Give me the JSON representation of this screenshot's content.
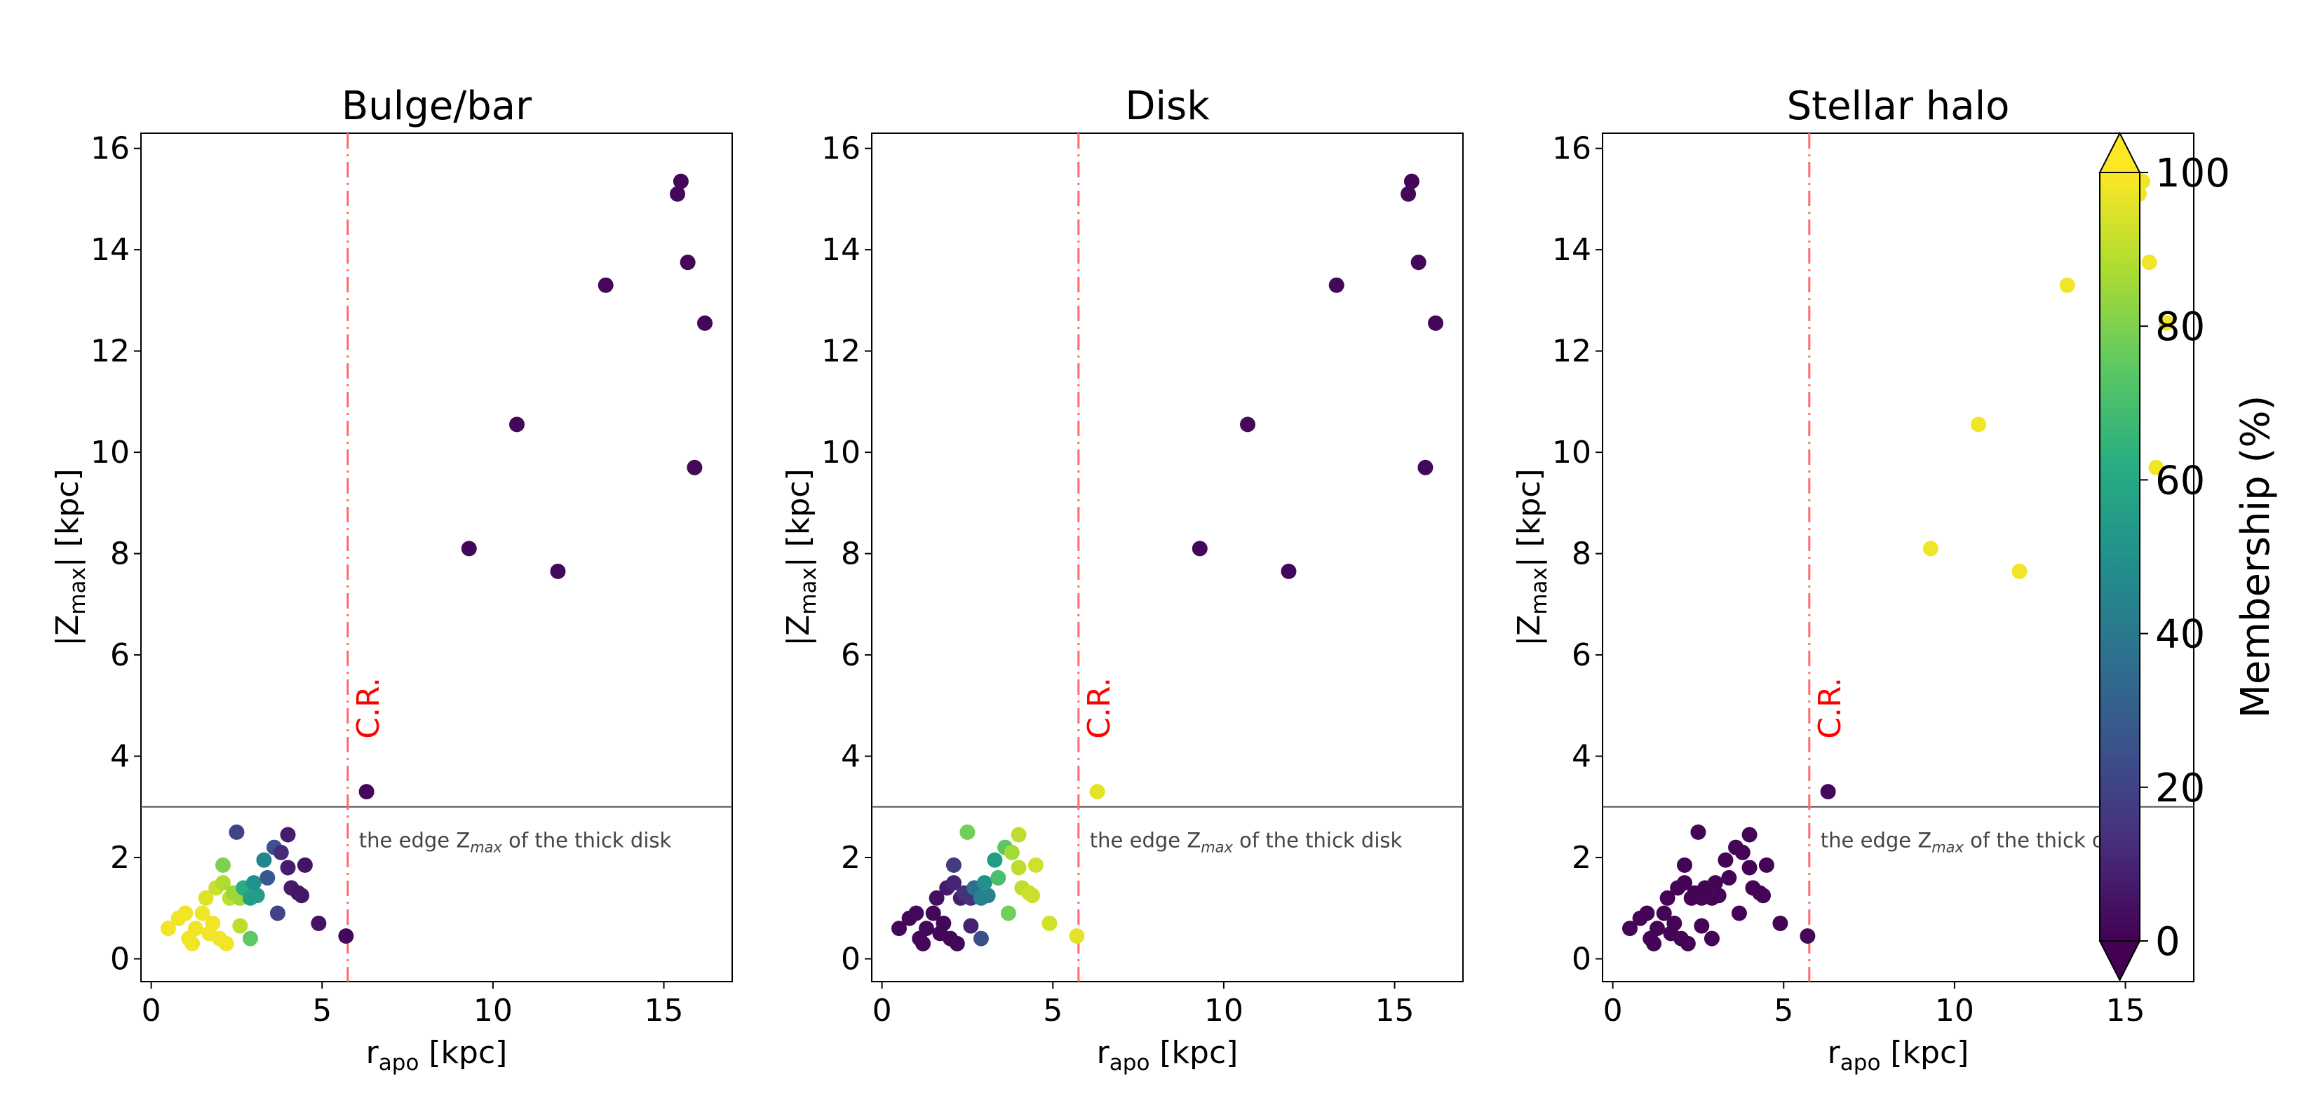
{
  "colors": {
    "cr_line": "#ff6a6a",
    "cr_text": "#ff0000",
    "edge_line": "#555555"
  },
  "chart_data": [
    {
      "type": "scatter",
      "title": "Bulge/bar",
      "xlabel_main": "r",
      "xlabel_sub": "apo",
      "xlabel_unit": " [kpc]",
      "ylabel_main": "|Z",
      "ylabel_sub": "max",
      "ylabel_unit": "| [kpc]",
      "xlim": [
        -0.3,
        17
      ],
      "ylim": [
        -0.45,
        16.3
      ],
      "xticks": [
        0,
        5,
        10,
        15
      ],
      "yticks": [
        0,
        2,
        4,
        6,
        8,
        10,
        12,
        14,
        16
      ],
      "cr_x": 5.75,
      "cr_label": "C.R.",
      "edge_y": 3.0,
      "edge_label_pre": "the edge Z",
      "edge_label_sub": "max",
      "edge_label_post": " of the thick disk",
      "points": [
        {
          "x": 15.4,
          "y": 15.1,
          "m": 2
        },
        {
          "x": 15.5,
          "y": 15.35,
          "m": 2
        },
        {
          "x": 15.7,
          "y": 13.75,
          "m": 2
        },
        {
          "x": 16.2,
          "y": 12.55,
          "m": 2
        },
        {
          "x": 13.3,
          "y": 13.3,
          "m": 2
        },
        {
          "x": 10.7,
          "y": 10.55,
          "m": 2
        },
        {
          "x": 15.9,
          "y": 9.7,
          "m": 2
        },
        {
          "x": 9.3,
          "y": 8.1,
          "m": 2
        },
        {
          "x": 11.9,
          "y": 7.65,
          "m": 2
        },
        {
          "x": 6.3,
          "y": 3.3,
          "m": 2
        },
        {
          "x": 5.7,
          "y": 0.45,
          "m": 2
        },
        {
          "x": 0.5,
          "y": 0.6,
          "m": 98
        },
        {
          "x": 0.8,
          "y": 0.8,
          "m": 98
        },
        {
          "x": 1.0,
          "y": 0.9,
          "m": 98
        },
        {
          "x": 1.1,
          "y": 0.4,
          "m": 98
        },
        {
          "x": 1.2,
          "y": 0.3,
          "m": 98
        },
        {
          "x": 1.3,
          "y": 0.6,
          "m": 98
        },
        {
          "x": 1.5,
          "y": 0.9,
          "m": 98
        },
        {
          "x": 1.6,
          "y": 1.2,
          "m": 95
        },
        {
          "x": 1.7,
          "y": 0.5,
          "m": 98
        },
        {
          "x": 1.8,
          "y": 0.7,
          "m": 98
        },
        {
          "x": 1.9,
          "y": 1.4,
          "m": 92
        },
        {
          "x": 2.0,
          "y": 0.4,
          "m": 98
        },
        {
          "x": 2.1,
          "y": 1.5,
          "m": 88
        },
        {
          "x": 2.2,
          "y": 0.3,
          "m": 98
        },
        {
          "x": 2.1,
          "y": 1.85,
          "m": 80
        },
        {
          "x": 2.3,
          "y": 1.2,
          "m": 90
        },
        {
          "x": 2.4,
          "y": 1.3,
          "m": 85
        },
        {
          "x": 2.6,
          "y": 1.2,
          "m": 85
        },
        {
          "x": 2.6,
          "y": 0.65,
          "m": 90
        },
        {
          "x": 2.9,
          "y": 0.4,
          "m": 75
        },
        {
          "x": 2.7,
          "y": 1.4,
          "m": 62
        },
        {
          "x": 2.9,
          "y": 1.2,
          "m": 55
        },
        {
          "x": 3.1,
          "y": 1.25,
          "m": 55
        },
        {
          "x": 3.0,
          "y": 1.5,
          "m": 50
        },
        {
          "x": 3.3,
          "y": 1.95,
          "m": 45
        },
        {
          "x": 3.4,
          "y": 1.6,
          "m": 28
        },
        {
          "x": 3.6,
          "y": 2.2,
          "m": 25
        },
        {
          "x": 2.5,
          "y": 2.5,
          "m": 20
        },
        {
          "x": 3.7,
          "y": 0.9,
          "m": 20
        },
        {
          "x": 3.8,
          "y": 2.1,
          "m": 12
        },
        {
          "x": 4.0,
          "y": 1.8,
          "m": 8
        },
        {
          "x": 4.0,
          "y": 2.45,
          "m": 8
        },
        {
          "x": 4.1,
          "y": 1.4,
          "m": 8
        },
        {
          "x": 4.3,
          "y": 1.3,
          "m": 6
        },
        {
          "x": 4.4,
          "y": 1.25,
          "m": 6
        },
        {
          "x": 4.5,
          "y": 1.85,
          "m": 5
        },
        {
          "x": 4.9,
          "y": 0.7,
          "m": 5
        }
      ]
    },
    {
      "type": "scatter",
      "title": "Disk",
      "xlabel_main": "r",
      "xlabel_sub": "apo",
      "xlabel_unit": " [kpc]",
      "ylabel_main": "|Z",
      "ylabel_sub": "max",
      "ylabel_unit": "| [kpc]",
      "xlim": [
        -0.3,
        17
      ],
      "ylim": [
        -0.45,
        16.3
      ],
      "xticks": [
        0,
        5,
        10,
        15
      ],
      "yticks": [
        0,
        2,
        4,
        6,
        8,
        10,
        12,
        14,
        16
      ],
      "cr_x": 5.75,
      "cr_label": "C.R.",
      "edge_y": 3.0,
      "edge_label_pre": "the edge Z",
      "edge_label_sub": "max",
      "edge_label_post": " of the thick disk",
      "points": [
        {
          "x": 15.4,
          "y": 15.1,
          "m": 2
        },
        {
          "x": 15.5,
          "y": 15.35,
          "m": 2
        },
        {
          "x": 15.7,
          "y": 13.75,
          "m": 2
        },
        {
          "x": 16.2,
          "y": 12.55,
          "m": 2
        },
        {
          "x": 13.3,
          "y": 13.3,
          "m": 2
        },
        {
          "x": 10.7,
          "y": 10.55,
          "m": 2
        },
        {
          "x": 15.9,
          "y": 9.7,
          "m": 2
        },
        {
          "x": 9.3,
          "y": 8.1,
          "m": 2
        },
        {
          "x": 11.9,
          "y": 7.65,
          "m": 2
        },
        {
          "x": 6.3,
          "y": 3.3,
          "m": 96
        },
        {
          "x": 5.7,
          "y": 0.45,
          "m": 96
        },
        {
          "x": 0.5,
          "y": 0.6,
          "m": 2
        },
        {
          "x": 0.8,
          "y": 0.8,
          "m": 2
        },
        {
          "x": 1.0,
          "y": 0.9,
          "m": 2
        },
        {
          "x": 1.1,
          "y": 0.4,
          "m": 2
        },
        {
          "x": 1.2,
          "y": 0.3,
          "m": 2
        },
        {
          "x": 1.3,
          "y": 0.6,
          "m": 2
        },
        {
          "x": 1.5,
          "y": 0.9,
          "m": 2
        },
        {
          "x": 1.6,
          "y": 1.2,
          "m": 4
        },
        {
          "x": 1.7,
          "y": 0.5,
          "m": 2
        },
        {
          "x": 1.8,
          "y": 0.7,
          "m": 2
        },
        {
          "x": 1.9,
          "y": 1.4,
          "m": 7
        },
        {
          "x": 2.0,
          "y": 0.4,
          "m": 2
        },
        {
          "x": 2.1,
          "y": 1.5,
          "m": 10
        },
        {
          "x": 2.2,
          "y": 0.3,
          "m": 2
        },
        {
          "x": 2.1,
          "y": 1.85,
          "m": 18
        },
        {
          "x": 2.3,
          "y": 1.2,
          "m": 9
        },
        {
          "x": 2.4,
          "y": 1.3,
          "m": 14
        },
        {
          "x": 2.6,
          "y": 1.2,
          "m": 14
        },
        {
          "x": 2.6,
          "y": 0.65,
          "m": 9
        },
        {
          "x": 2.9,
          "y": 0.4,
          "m": 24
        },
        {
          "x": 2.7,
          "y": 1.4,
          "m": 37
        },
        {
          "x": 2.9,
          "y": 1.2,
          "m": 44
        },
        {
          "x": 3.1,
          "y": 1.25,
          "m": 44
        },
        {
          "x": 3.0,
          "y": 1.5,
          "m": 50
        },
        {
          "x": 3.3,
          "y": 1.95,
          "m": 55
        },
        {
          "x": 3.4,
          "y": 1.6,
          "m": 70
        },
        {
          "x": 3.6,
          "y": 2.2,
          "m": 74
        },
        {
          "x": 2.5,
          "y": 2.5,
          "m": 78
        },
        {
          "x": 3.7,
          "y": 0.9,
          "m": 78
        },
        {
          "x": 3.8,
          "y": 2.1,
          "m": 86
        },
        {
          "x": 4.0,
          "y": 1.8,
          "m": 90
        },
        {
          "x": 4.0,
          "y": 2.45,
          "m": 90
        },
        {
          "x": 4.1,
          "y": 1.4,
          "m": 90
        },
        {
          "x": 4.3,
          "y": 1.3,
          "m": 92
        },
        {
          "x": 4.4,
          "y": 1.25,
          "m": 92
        },
        {
          "x": 4.5,
          "y": 1.85,
          "m": 93
        },
        {
          "x": 4.9,
          "y": 0.7,
          "m": 93
        }
      ]
    },
    {
      "type": "scatter",
      "title": "Stellar halo",
      "xlabel_main": "r",
      "xlabel_sub": "apo",
      "xlabel_unit": " [kpc]",
      "ylabel_main": "|Z",
      "ylabel_sub": "max",
      "ylabel_unit": "| [kpc]",
      "xlim": [
        -0.3,
        17
      ],
      "ylim": [
        -0.45,
        16.3
      ],
      "xticks": [
        0,
        5,
        10,
        15
      ],
      "yticks": [
        0,
        2,
        4,
        6,
        8,
        10,
        12,
        14,
        16
      ],
      "cr_x": 5.75,
      "cr_label": "C.R.",
      "edge_y": 3.0,
      "edge_label_pre": "the edge Z",
      "edge_label_sub": "max",
      "edge_label_post": " of the thick disk",
      "points": [
        {
          "x": 15.4,
          "y": 15.1,
          "m": 98
        },
        {
          "x": 15.5,
          "y": 15.35,
          "m": 98
        },
        {
          "x": 15.7,
          "y": 13.75,
          "m": 98
        },
        {
          "x": 16.2,
          "y": 12.55,
          "m": 98
        },
        {
          "x": 13.3,
          "y": 13.3,
          "m": 98
        },
        {
          "x": 10.7,
          "y": 10.55,
          "m": 98
        },
        {
          "x": 15.9,
          "y": 9.7,
          "m": 98
        },
        {
          "x": 9.3,
          "y": 8.1,
          "m": 98
        },
        {
          "x": 11.9,
          "y": 7.65,
          "m": 98
        },
        {
          "x": 6.3,
          "y": 3.3,
          "m": 2
        },
        {
          "x": 5.7,
          "y": 0.45,
          "m": 2
        },
        {
          "x": 0.5,
          "y": 0.6,
          "m": 1
        },
        {
          "x": 0.8,
          "y": 0.8,
          "m": 1
        },
        {
          "x": 1.0,
          "y": 0.9,
          "m": 1
        },
        {
          "x": 1.1,
          "y": 0.4,
          "m": 1
        },
        {
          "x": 1.2,
          "y": 0.3,
          "m": 1
        },
        {
          "x": 1.3,
          "y": 0.6,
          "m": 1
        },
        {
          "x": 1.5,
          "y": 0.9,
          "m": 1
        },
        {
          "x": 1.6,
          "y": 1.2,
          "m": 1
        },
        {
          "x": 1.7,
          "y": 0.5,
          "m": 1
        },
        {
          "x": 1.8,
          "y": 0.7,
          "m": 1
        },
        {
          "x": 1.9,
          "y": 1.4,
          "m": 1
        },
        {
          "x": 2.0,
          "y": 0.4,
          "m": 1
        },
        {
          "x": 2.1,
          "y": 1.5,
          "m": 1
        },
        {
          "x": 2.2,
          "y": 0.3,
          "m": 1
        },
        {
          "x": 2.1,
          "y": 1.85,
          "m": 1
        },
        {
          "x": 2.3,
          "y": 1.2,
          "m": 1
        },
        {
          "x": 2.4,
          "y": 1.3,
          "m": 1
        },
        {
          "x": 2.6,
          "y": 1.2,
          "m": 1
        },
        {
          "x": 2.6,
          "y": 0.65,
          "m": 1
        },
        {
          "x": 2.9,
          "y": 0.4,
          "m": 1
        },
        {
          "x": 2.7,
          "y": 1.4,
          "m": 1
        },
        {
          "x": 2.9,
          "y": 1.2,
          "m": 1
        },
        {
          "x": 3.1,
          "y": 1.25,
          "m": 1
        },
        {
          "x": 3.0,
          "y": 1.5,
          "m": 1
        },
        {
          "x": 3.3,
          "y": 1.95,
          "m": 1
        },
        {
          "x": 3.4,
          "y": 1.6,
          "m": 1
        },
        {
          "x": 3.6,
          "y": 2.2,
          "m": 1
        },
        {
          "x": 2.5,
          "y": 2.5,
          "m": 1
        },
        {
          "x": 3.7,
          "y": 0.9,
          "m": 1
        },
        {
          "x": 3.8,
          "y": 2.1,
          "m": 1
        },
        {
          "x": 4.0,
          "y": 1.8,
          "m": 1
        },
        {
          "x": 4.0,
          "y": 2.45,
          "m": 1
        },
        {
          "x": 4.1,
          "y": 1.4,
          "m": 1
        },
        {
          "x": 4.3,
          "y": 1.3,
          "m": 1
        },
        {
          "x": 4.4,
          "y": 1.25,
          "m": 1
        },
        {
          "x": 4.5,
          "y": 1.85,
          "m": 1
        },
        {
          "x": 4.9,
          "y": 0.7,
          "m": 1
        }
      ]
    }
  ],
  "colorbar": {
    "label": "Membership (%)",
    "range": [
      0,
      100
    ],
    "ticks": [
      "0",
      "20",
      "40",
      "60",
      "80",
      "100"
    ],
    "colormap": "viridis",
    "extend": "both"
  }
}
